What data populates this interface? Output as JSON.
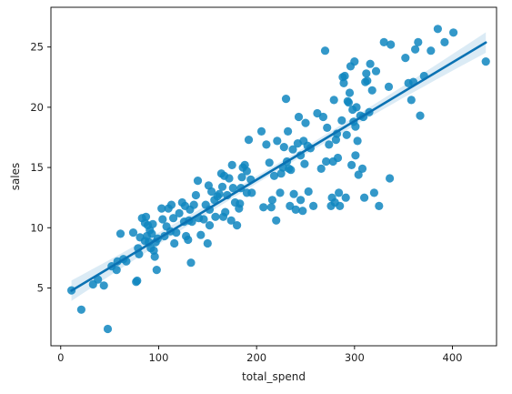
{
  "chart_data": {
    "type": "scatter",
    "title": "",
    "xlabel": "total_spend",
    "ylabel": "sales",
    "xlim": [
      -10,
      445
    ],
    "ylim": [
      0.2,
      28.3
    ],
    "xticks": [
      0,
      100,
      200,
      300,
      400
    ],
    "yticks": [
      5,
      10,
      15,
      20,
      25
    ],
    "grid": false,
    "legend": "none",
    "colors": {
      "points": "#0f86c0",
      "line": "#0a72b3",
      "band": "#cfe4f2"
    },
    "regression": {
      "x_range": [
        11,
        434
      ],
      "intercept": 4.24,
      "slope": 0.0487,
      "ci_width_at_ends": 0.85,
      "ci_width_at_mean": 0.3
    },
    "x": [
      11,
      21,
      33,
      38,
      44,
      48,
      52,
      57,
      58,
      61,
      64,
      67,
      74,
      77,
      78,
      79,
      80,
      81,
      83,
      86,
      86,
      87,
      88,
      89,
      90,
      91,
      92,
      93,
      94,
      95,
      96,
      97,
      98,
      99,
      103,
      104,
      106,
      108,
      110,
      112,
      113,
      115,
      116,
      118,
      121,
      124,
      126,
      127,
      128,
      130,
      131,
      132,
      133,
      134,
      136,
      138,
      140,
      141,
      143,
      146,
      148,
      150,
      151,
      152,
      152,
      154,
      157,
      158,
      160,
      162,
      164,
      165,
      166,
      167,
      168,
      170,
      172,
      174,
      175,
      176,
      178,
      180,
      182,
      183,
      184,
      185,
      186,
      188,
      190,
      190,
      192,
      194,
      195,
      205,
      207,
      210,
      213,
      215,
      216,
      218,
      220,
      221,
      224,
      225,
      227,
      228,
      230,
      231,
      232,
      233,
      234,
      235,
      237,
      238,
      240,
      242,
      243,
      245,
      245,
      247,
      248,
      249,
      250,
      252,
      253,
      255,
      258,
      262,
      266,
      268,
      270,
      271,
      272,
      274,
      276,
      277,
      278,
      279,
      280,
      281,
      282,
      283,
      284,
      285,
      287,
      288,
      289,
      290,
      291,
      292,
      293,
      294,
      295,
      296,
      297,
      298,
      299,
      300,
      301,
      301,
      302,
      303,
      304,
      306,
      308,
      309,
      310,
      311,
      312,
      313,
      315,
      316,
      318,
      320,
      322,
      325,
      330,
      335,
      336,
      337,
      352,
      355,
      358,
      360,
      362,
      365,
      367,
      371,
      378,
      385,
      392,
      401,
      434
    ],
    "y": [
      4.8,
      3.2,
      5.3,
      5.7,
      5.2,
      1.6,
      6.8,
      6.5,
      7.2,
      9.5,
      7.4,
      7.2,
      9.6,
      5.5,
      5.6,
      8.3,
      7.8,
      9.2,
      10.8,
      8.9,
      10.4,
      10.9,
      9.3,
      10.2,
      8.8,
      9.8,
      8.3,
      9.5,
      10.3,
      8.1,
      7.6,
      8.8,
      6.5,
      9.1,
      11.6,
      10.7,
      9.3,
      10.1,
      11.6,
      9.7,
      11.9,
      10.8,
      8.7,
      9.6,
      11.2,
      12.1,
      10.5,
      11.8,
      9.3,
      9.0,
      10.6,
      11.5,
      7.1,
      10.5,
      11.9,
      12.7,
      13.9,
      10.8,
      9.4,
      10.7,
      11.9,
      8.7,
      13.5,
      11.5,
      10.2,
      13.0,
      12.3,
      10.9,
      12.6,
      12.8,
      14.5,
      13.4,
      10.9,
      14.3,
      11.3,
      12.7,
      14.1,
      10.6,
      15.2,
      13.3,
      12.1,
      10.2,
      11.6,
      12.0,
      13.3,
      14.2,
      15.0,
      15.2,
      14.7,
      12.9,
      17.3,
      14.0,
      12.9,
      18.0,
      11.7,
      16.9,
      15.4,
      11.7,
      12.3,
      14.3,
      10.6,
      17.2,
      12.9,
      14.5,
      15.0,
      16.7,
      20.7,
      15.5,
      18.0,
      14.9,
      11.8,
      14.8,
      16.5,
      12.8,
      11.5,
      17.0,
      19.2,
      16.0,
      12.3,
      11.4,
      17.2,
      15.3,
      18.7,
      16.8,
      13.0,
      16.6,
      11.8,
      19.5,
      14.9,
      19.2,
      24.7,
      15.5,
      18.3,
      16.9,
      11.8,
      12.5,
      15.5,
      20.6,
      12.1,
      17.3,
      17.8,
      15.8,
      12.9,
      11.8,
      18.9,
      22.5,
      22.0,
      22.6,
      12.5,
      17.7,
      20.5,
      20.4,
      21.2,
      23.4,
      15.2,
      19.8,
      18.8,
      23.8,
      16.0,
      18.4,
      20.0,
      17.2,
      14.4,
      19.3,
      14.9,
      19.2,
      12.5,
      22.1,
      22.8,
      22.2,
      19.6,
      23.6,
      21.4,
      12.9,
      23.0,
      11.8,
      25.4,
      21.7,
      14.1,
      25.2,
      24.1,
      22.0,
      20.6,
      22.1,
      24.8,
      25.4,
      19.3,
      22.6,
      24.7,
      26.5,
      25.4,
      26.2,
      23.8
    ]
  }
}
